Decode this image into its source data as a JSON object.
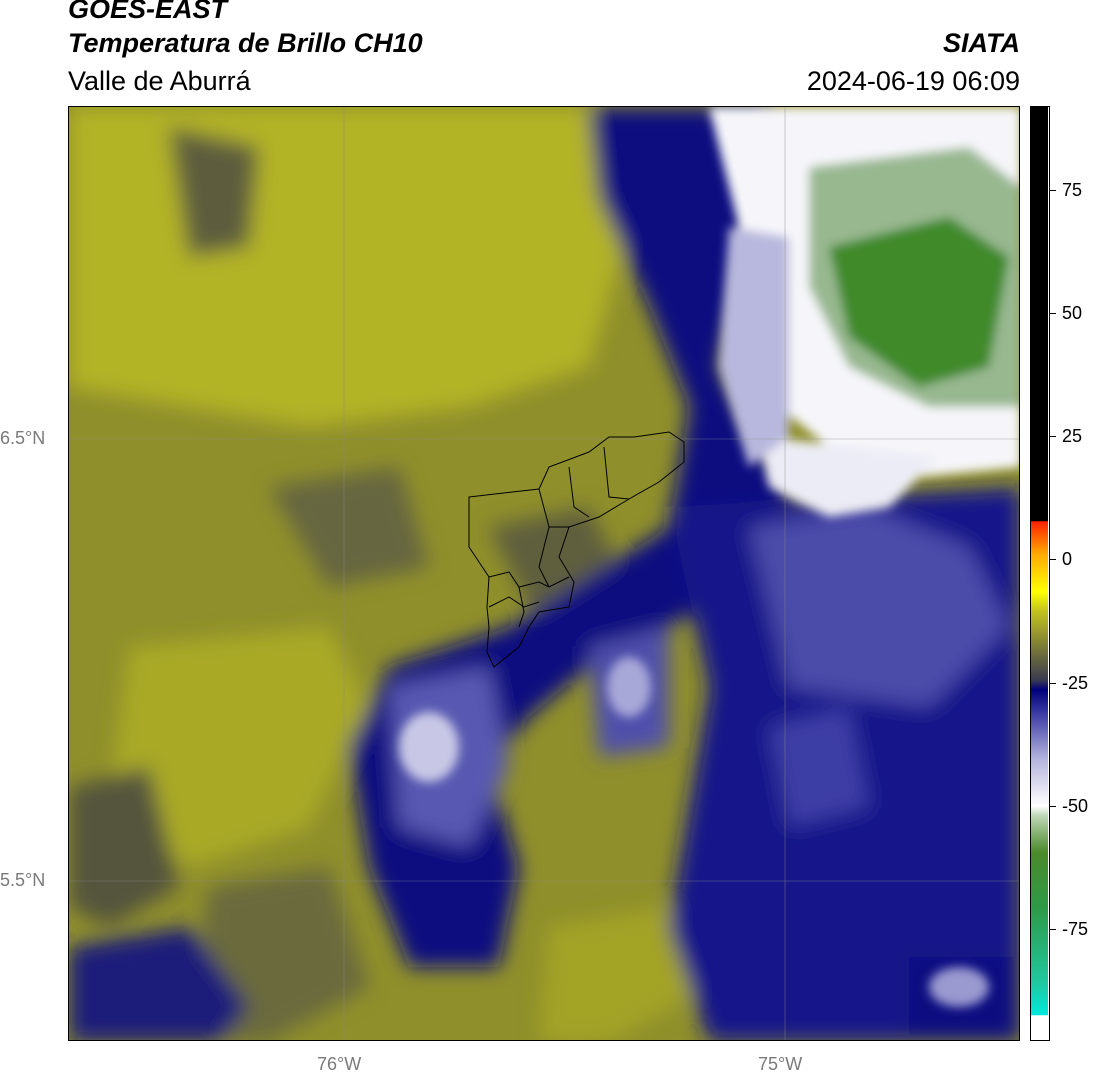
{
  "header": {
    "title_satellite": "GOES-EAST",
    "title_product": "Temperatura de Brillo CH10",
    "title_region": "Valle de Aburrá",
    "organization": "SIATA",
    "datetime": "2024-06-19 06:09"
  },
  "map": {
    "lat_labels": [
      "6.5°N",
      "5.5°N"
    ],
    "lon_labels": [
      "76°W",
      "75°W"
    ],
    "overlay": "municipal-boundaries-valle-de-aburra",
    "colors": {
      "warm_background": "#8f8f2b",
      "yellow_high": "#b8b825",
      "olive_mid": "#5f5f3a",
      "deep_blue": "#0a0a80",
      "mid_blue": "#4a4aa8",
      "light_lavender": "#c8c8e6",
      "white_cold": "#ffffff",
      "green_cold": "#3f8f2a"
    }
  },
  "colorbar": {
    "ticks": [
      "75",
      "50",
      "25",
      "0",
      "-25",
      "-50",
      "-75"
    ],
    "colors": [
      "#ffffff",
      "#00e5d5",
      "#2aa06a",
      "#3f8a2a",
      "#c8dcc0",
      "#ffffff",
      "#b8b8e0",
      "#3c3ca6",
      "#00007a",
      "#55553e",
      "#b8b825",
      "#ffff00",
      "#ff9900",
      "#ff3300",
      "#000000"
    ]
  }
}
